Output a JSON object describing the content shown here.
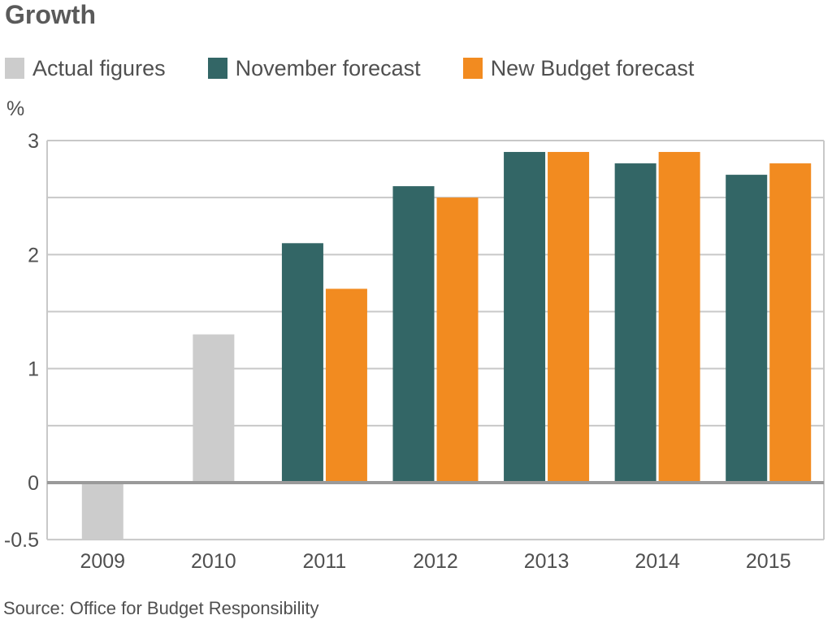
{
  "chart_data": {
    "type": "bar",
    "title": "Growth",
    "unit_label": "%",
    "categories": [
      "2009",
      "2010",
      "2011",
      "2012",
      "2013",
      "2014",
      "2015"
    ],
    "series": [
      {
        "name": "Actual figures",
        "color": "#cccccc",
        "values": [
          -0.5,
          1.3,
          null,
          null,
          null,
          null,
          null
        ]
      },
      {
        "name": "November forecast",
        "color": "#336666",
        "values": [
          null,
          null,
          2.1,
          2.6,
          2.9,
          2.8,
          2.7
        ]
      },
      {
        "name": "New Budget forecast",
        "color": "#f28b20",
        "values": [
          null,
          null,
          1.7,
          2.5,
          2.9,
          2.9,
          2.8
        ]
      }
    ],
    "y_ticks": [
      {
        "value": 3,
        "label": "3"
      },
      {
        "value": 2,
        "label": "2"
      },
      {
        "value": 1,
        "label": "1"
      },
      {
        "value": 0,
        "label": "0"
      },
      {
        "value": -0.5,
        "label": "-0.5"
      }
    ],
    "ylim": [
      -0.5,
      3
    ],
    "grid": true,
    "legend_position": "top-left",
    "source": "Source: Office for Budget Responsibility"
  }
}
